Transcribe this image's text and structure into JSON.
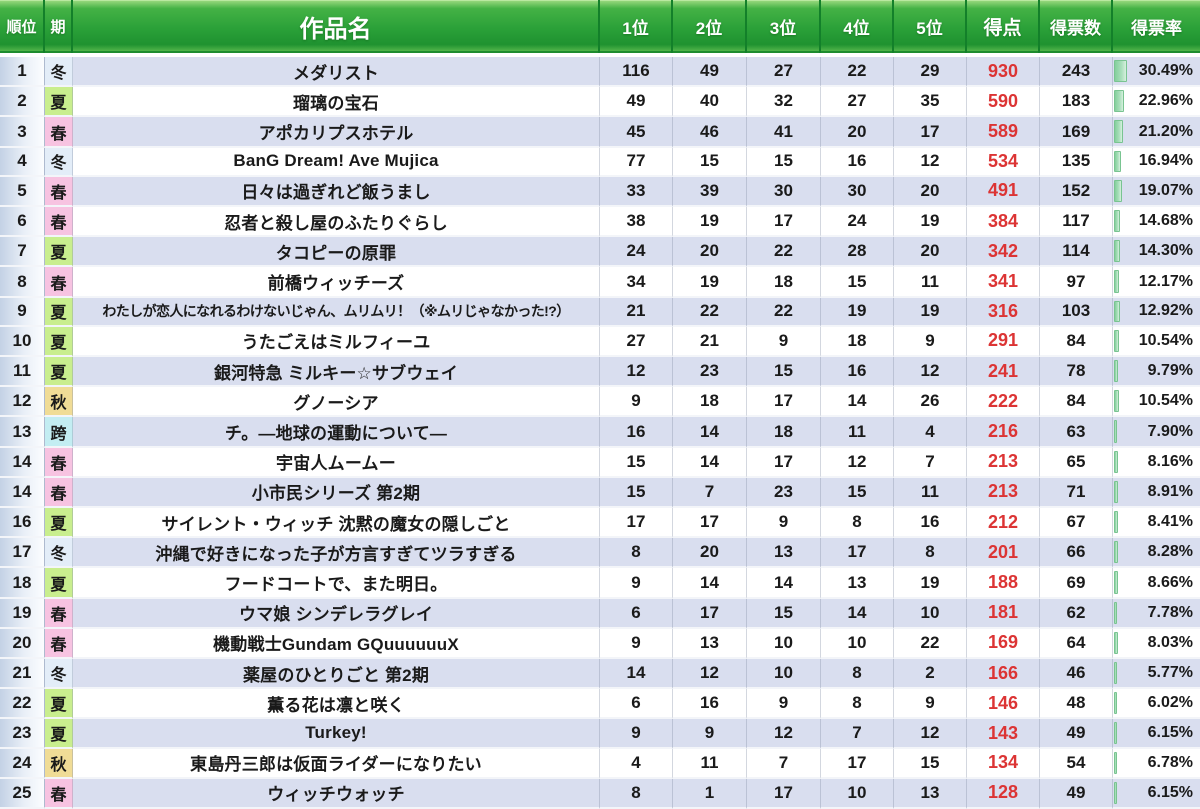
{
  "colors": {
    "header_green": "#2aa038",
    "header_separator": "#13802a",
    "row_alt_lavender": "#d9deef",
    "row_white": "#ffffff",
    "rank_gradient_left": "#c3d1e5",
    "score_red": "#dc3434",
    "rate_bar_green": "#84cf9c",
    "header_text": "#ffffff"
  },
  "season_colors": {
    "冬": "#e3edf8",
    "夏": "#c9ee8e",
    "春": "#f7c3e1",
    "秋": "#f0dc96",
    "跨": "#c3edf2"
  },
  "chart_data": {
    "type": "table",
    "columns": [
      {
        "key": "rank",
        "label": "順位"
      },
      {
        "key": "season",
        "label": "期"
      },
      {
        "key": "title",
        "label": "作品名"
      },
      {
        "key": "v1",
        "label": "1位"
      },
      {
        "key": "v2",
        "label": "2位"
      },
      {
        "key": "v3",
        "label": "3位"
      },
      {
        "key": "v4",
        "label": "4位"
      },
      {
        "key": "v5",
        "label": "5位"
      },
      {
        "key": "score",
        "label": "得点"
      },
      {
        "key": "votes",
        "label": "得票数"
      },
      {
        "key": "rate",
        "label": "得票率"
      }
    ],
    "rows": [
      {
        "rank": 1,
        "season": "冬",
        "title": "メダリスト",
        "v1": 116,
        "v2": 49,
        "v3": 27,
        "v4": 22,
        "v5": 29,
        "score": 930,
        "votes": 243,
        "rate": "30.49%"
      },
      {
        "rank": 2,
        "season": "夏",
        "title": "瑠璃の宝石",
        "v1": 49,
        "v2": 40,
        "v3": 32,
        "v4": 27,
        "v5": 35,
        "score": 590,
        "votes": 183,
        "rate": "22.96%"
      },
      {
        "rank": 3,
        "season": "春",
        "title": "アポカリプスホテル",
        "v1": 45,
        "v2": 46,
        "v3": 41,
        "v4": 20,
        "v5": 17,
        "score": 589,
        "votes": 169,
        "rate": "21.20%"
      },
      {
        "rank": 4,
        "season": "冬",
        "title": "BanG Dream! Ave Mujica",
        "v1": 77,
        "v2": 15,
        "v3": 15,
        "v4": 16,
        "v5": 12,
        "score": 534,
        "votes": 135,
        "rate": "16.94%"
      },
      {
        "rank": 5,
        "season": "春",
        "title": "日々は過ぎれど飯うまし",
        "v1": 33,
        "v2": 39,
        "v3": 30,
        "v4": 30,
        "v5": 20,
        "score": 491,
        "votes": 152,
        "rate": "19.07%"
      },
      {
        "rank": 6,
        "season": "春",
        "title": "忍者と殺し屋のふたりぐらし",
        "v1": 38,
        "v2": 19,
        "v3": 17,
        "v4": 24,
        "v5": 19,
        "score": 384,
        "votes": 117,
        "rate": "14.68%"
      },
      {
        "rank": 7,
        "season": "夏",
        "title": "タコピーの原罪",
        "v1": 24,
        "v2": 20,
        "v3": 22,
        "v4": 28,
        "v5": 20,
        "score": 342,
        "votes": 114,
        "rate": "14.30%"
      },
      {
        "rank": 8,
        "season": "春",
        "title": "前橋ウィッチーズ",
        "v1": 34,
        "v2": 19,
        "v3": 18,
        "v4": 15,
        "v5": 11,
        "score": 341,
        "votes": 97,
        "rate": "12.17%"
      },
      {
        "rank": 9,
        "season": "夏",
        "title": "わたしが恋人になれるわけないじゃん、ムリムリ！（※ムリじゃなかった!?）",
        "v1": 21,
        "v2": 22,
        "v3": 22,
        "v4": 19,
        "v5": 19,
        "score": 316,
        "votes": 103,
        "rate": "12.92%"
      },
      {
        "rank": 10,
        "season": "夏",
        "title": "うたごえはミルフィーユ",
        "v1": 27,
        "v2": 21,
        "v3": 9,
        "v4": 18,
        "v5": 9,
        "score": 291,
        "votes": 84,
        "rate": "10.54%"
      },
      {
        "rank": 11,
        "season": "夏",
        "title": "銀河特急 ミルキー☆サブウェイ",
        "v1": 12,
        "v2": 23,
        "v3": 15,
        "v4": 16,
        "v5": 12,
        "score": 241,
        "votes": 78,
        "rate": "9.79%"
      },
      {
        "rank": 12,
        "season": "秋",
        "title": "グノーシア",
        "v1": 9,
        "v2": 18,
        "v3": 17,
        "v4": 14,
        "v5": 26,
        "score": 222,
        "votes": 84,
        "rate": "10.54%"
      },
      {
        "rank": 13,
        "season": "跨",
        "title": "チ。―地球の運動について―",
        "v1": 16,
        "v2": 14,
        "v3": 18,
        "v4": 11,
        "v5": 4,
        "score": 216,
        "votes": 63,
        "rate": "7.90%"
      },
      {
        "rank": 14,
        "season": "春",
        "title": "宇宙人ムームー",
        "v1": 15,
        "v2": 14,
        "v3": 17,
        "v4": 12,
        "v5": 7,
        "score": 213,
        "votes": 65,
        "rate": "8.16%"
      },
      {
        "rank": 14,
        "season": "春",
        "title": "小市民シリーズ 第2期",
        "v1": 15,
        "v2": 7,
        "v3": 23,
        "v4": 15,
        "v5": 11,
        "score": 213,
        "votes": 71,
        "rate": "8.91%"
      },
      {
        "rank": 16,
        "season": "夏",
        "title": "サイレント・ウィッチ 沈黙の魔女の隠しごと",
        "v1": 17,
        "v2": 17,
        "v3": 9,
        "v4": 8,
        "v5": 16,
        "score": 212,
        "votes": 67,
        "rate": "8.41%"
      },
      {
        "rank": 17,
        "season": "冬",
        "title": "沖縄で好きになった子が方言すぎてツラすぎる",
        "v1": 8,
        "v2": 20,
        "v3": 13,
        "v4": 17,
        "v5": 8,
        "score": 201,
        "votes": 66,
        "rate": "8.28%"
      },
      {
        "rank": 18,
        "season": "夏",
        "title": "フードコートで、また明日。",
        "v1": 9,
        "v2": 14,
        "v3": 14,
        "v4": 13,
        "v5": 19,
        "score": 188,
        "votes": 69,
        "rate": "8.66%"
      },
      {
        "rank": 19,
        "season": "春",
        "title": "ウマ娘 シンデレラグレイ",
        "v1": 6,
        "v2": 17,
        "v3": 15,
        "v4": 14,
        "v5": 10,
        "score": 181,
        "votes": 62,
        "rate": "7.78%"
      },
      {
        "rank": 20,
        "season": "春",
        "title": "機動戦士Gundam GQuuuuuuX",
        "v1": 9,
        "v2": 13,
        "v3": 10,
        "v4": 10,
        "v5": 22,
        "score": 169,
        "votes": 64,
        "rate": "8.03%"
      },
      {
        "rank": 21,
        "season": "冬",
        "title": "薬屋のひとりごと 第2期",
        "v1": 14,
        "v2": 12,
        "v3": 10,
        "v4": 8,
        "v5": 2,
        "score": 166,
        "votes": 46,
        "rate": "5.77%"
      },
      {
        "rank": 22,
        "season": "夏",
        "title": "薫る花は凛と咲く",
        "v1": 6,
        "v2": 16,
        "v3": 9,
        "v4": 8,
        "v5": 9,
        "score": 146,
        "votes": 48,
        "rate": "6.02%"
      },
      {
        "rank": 23,
        "season": "夏",
        "title": "Turkey!",
        "v1": 9,
        "v2": 9,
        "v3": 12,
        "v4": 7,
        "v5": 12,
        "score": 143,
        "votes": 49,
        "rate": "6.15%"
      },
      {
        "rank": 24,
        "season": "秋",
        "title": "東島丹三郎は仮面ライダーになりたい",
        "v1": 4,
        "v2": 11,
        "v3": 7,
        "v4": 17,
        "v5": 15,
        "score": 134,
        "votes": 54,
        "rate": "6.78%"
      },
      {
        "rank": 25,
        "season": "春",
        "title": "ウィッチウォッチ",
        "v1": 8,
        "v2": 1,
        "v3": 17,
        "v4": 10,
        "v5": 13,
        "score": 128,
        "votes": 49,
        "rate": "6.15%"
      }
    ]
  }
}
